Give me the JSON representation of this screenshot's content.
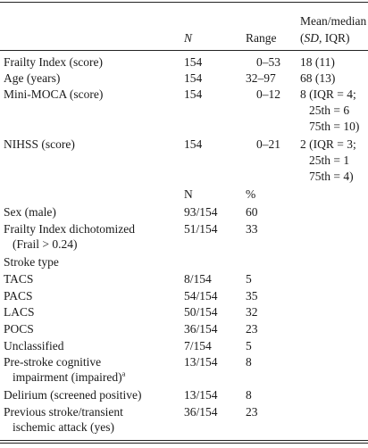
{
  "table": {
    "header": {
      "n": "N",
      "range": "Range",
      "mean_line1": "Mean/median",
      "mean_sd": "SD,",
      "mean_iqr": "IQR)"
    },
    "continuous_rows": [
      {
        "label": "Frailty Index (score)",
        "n": "154",
        "range": "0–53",
        "value": "18 (11)"
      },
      {
        "label": "Age (years)",
        "n": "154",
        "range": "32–97",
        "value": "68 (13)"
      },
      {
        "label": "Mini-MOCA (score)",
        "n": "154",
        "range": "0–12",
        "value": "8 (IQR = 4;",
        "value2": "25th = 6",
        "value3": "75th = 10)"
      },
      {
        "label": "NIHSS (score)",
        "n": "154",
        "range": "0–21",
        "value": "2 (IQR = 3;",
        "value2": "25th =  1",
        "value3": "75th = 4)"
      }
    ],
    "subheader": {
      "n": "N",
      "pct": "%"
    },
    "categorical_rows": [
      {
        "label": "Sex (male)",
        "n": "93/154",
        "pct": "60"
      },
      {
        "label": "Frailty Index dichotomized",
        "label2": "(Frail > 0.24)",
        "n": "51/154",
        "pct": "33"
      },
      {
        "label": "Stroke type"
      },
      {
        "label": "TACS",
        "n": "8/154",
        "pct": "5"
      },
      {
        "label": "PACS",
        "n": "54/154",
        "pct": "35"
      },
      {
        "label": "LACS",
        "n": "50/154",
        "pct": "32"
      },
      {
        "label": "POCS",
        "n": "36/154",
        "pct": "23"
      },
      {
        "label": "Unclassified",
        "n": "7/154",
        "pct": "5"
      },
      {
        "label": "Pre-stroke cognitive",
        "label2": "impairment (impaired)",
        "footnote": "a",
        "n": "13/154",
        "pct": "8"
      },
      {
        "label": "Delirium (screened positive)",
        "n": "13/154",
        "pct": "8"
      },
      {
        "label": "Previous stroke/transient",
        "label2": "ischemic attack (yes)",
        "n": "36/154",
        "pct": "23"
      }
    ]
  }
}
